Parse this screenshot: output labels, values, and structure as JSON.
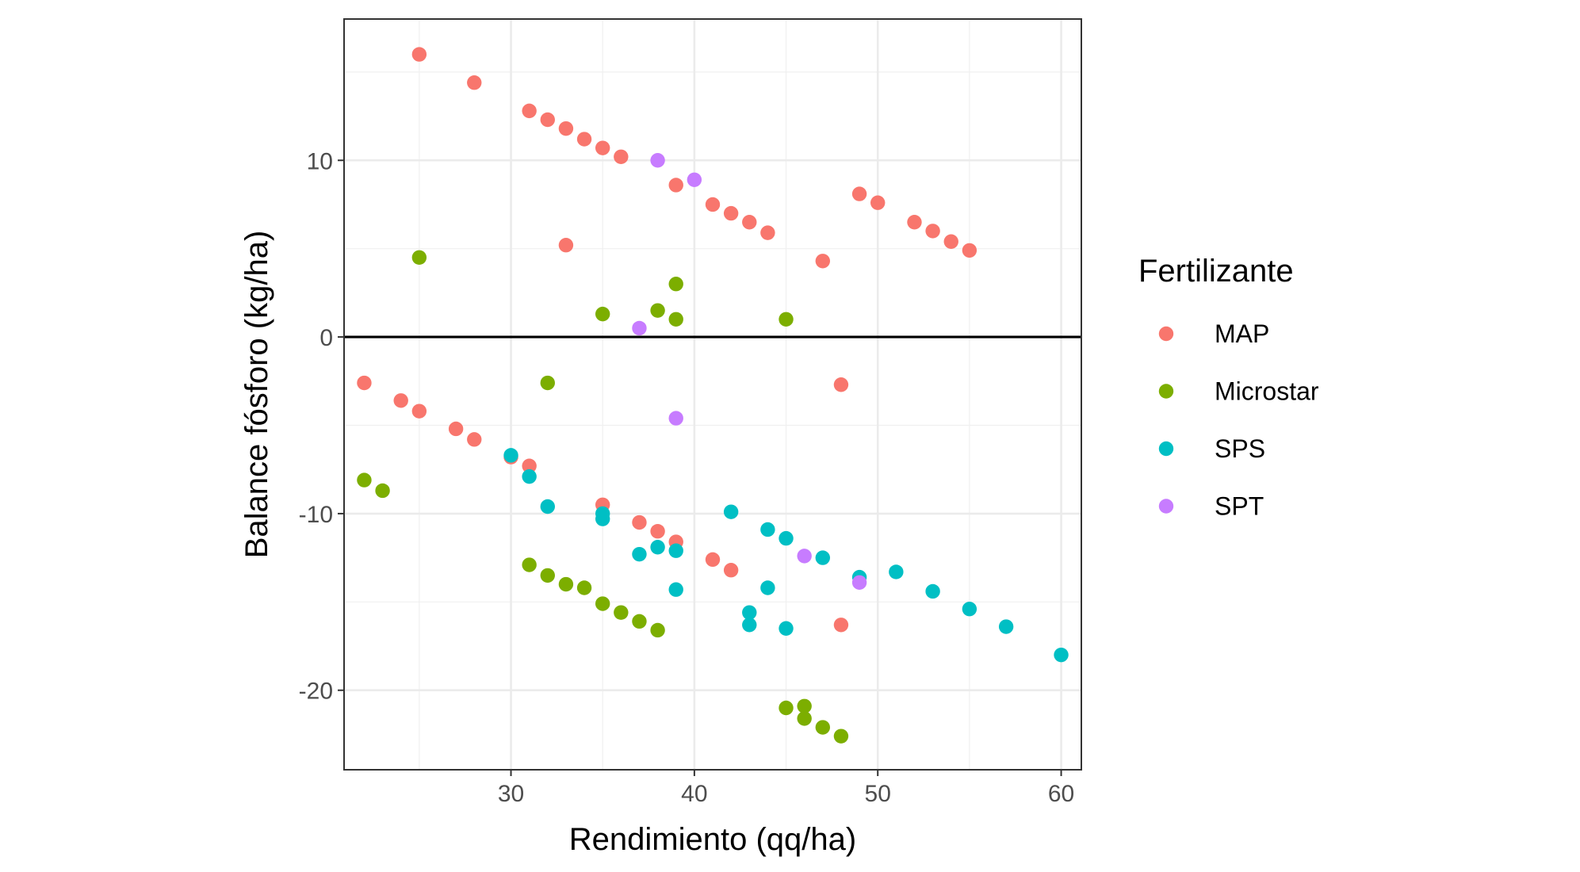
{
  "chart_data": {
    "type": "scatter",
    "xlabel": "Rendimiento (qq/ha)",
    "ylabel": "Balance fósforo (kg/ha)",
    "xlim": [
      20.9,
      61.1
    ],
    "ylim": [
      -24.5,
      18.0
    ],
    "x_ticks": [
      30,
      40,
      50,
      60
    ],
    "y_ticks": [
      -20,
      -10,
      0,
      10
    ],
    "reference_line_y": 0,
    "grid": true,
    "legend": {
      "title": "Fertilizante",
      "position": "right"
    },
    "series": [
      {
        "name": "MAP",
        "color": "#F8766D",
        "points": [
          [
            25,
            16.0
          ],
          [
            28,
            14.4
          ],
          [
            31,
            12.8
          ],
          [
            32,
            12.3
          ],
          [
            33,
            11.8
          ],
          [
            34,
            11.2
          ],
          [
            35,
            10.7
          ],
          [
            36,
            10.2
          ],
          [
            39,
            8.6
          ],
          [
            41,
            7.5
          ],
          [
            42,
            7.0
          ],
          [
            43,
            6.5
          ],
          [
            44,
            5.9
          ],
          [
            47,
            4.3
          ],
          [
            49,
            8.1
          ],
          [
            50,
            7.6
          ],
          [
            52,
            6.5
          ],
          [
            53,
            6.0
          ],
          [
            54,
            5.4
          ],
          [
            55,
            4.9
          ],
          [
            33,
            5.2
          ],
          [
            22,
            -2.6
          ],
          [
            24,
            -3.6
          ],
          [
            25,
            -4.2
          ],
          [
            27,
            -5.2
          ],
          [
            28,
            -5.8
          ],
          [
            30,
            -6.8
          ],
          [
            31,
            -7.3
          ],
          [
            35,
            -9.5
          ],
          [
            37,
            -10.5
          ],
          [
            38,
            -11.0
          ],
          [
            39,
            -11.6
          ],
          [
            41,
            -12.6
          ],
          [
            42,
            -13.2
          ],
          [
            48,
            -2.7
          ],
          [
            48,
            -16.3
          ]
        ]
      },
      {
        "name": "Microstar",
        "color": "#7CAE00",
        "points": [
          [
            25,
            4.5
          ],
          [
            35,
            1.3
          ],
          [
            38,
            1.5
          ],
          [
            39,
            1.0
          ],
          [
            39,
            3.0
          ],
          [
            45,
            1.0
          ],
          [
            32,
            -2.6
          ],
          [
            22,
            -8.1
          ],
          [
            23,
            -8.7
          ],
          [
            31,
            -12.9
          ],
          [
            32,
            -13.5
          ],
          [
            33,
            -14.0
          ],
          [
            34,
            -14.2
          ],
          [
            35,
            -15.1
          ],
          [
            36,
            -15.6
          ],
          [
            37,
            -16.1
          ],
          [
            38,
            -16.6
          ],
          [
            45,
            -21.0
          ],
          [
            46,
            -20.9
          ],
          [
            46,
            -21.6
          ],
          [
            47,
            -22.1
          ],
          [
            48,
            -22.6
          ]
        ]
      },
      {
        "name": "SPS",
        "color": "#00BFC4",
        "points": [
          [
            30,
            -6.7
          ],
          [
            31,
            -7.9
          ],
          [
            32,
            -9.6
          ],
          [
            35,
            -10.0
          ],
          [
            35,
            -10.3
          ],
          [
            37,
            -12.3
          ],
          [
            38,
            -11.9
          ],
          [
            39,
            -12.1
          ],
          [
            39,
            -14.3
          ],
          [
            42,
            -9.9
          ],
          [
            43,
            -15.6
          ],
          [
            43,
            -16.3
          ],
          [
            44,
            -10.9
          ],
          [
            44,
            -14.2
          ],
          [
            45,
            -11.4
          ],
          [
            45,
            -16.5
          ],
          [
            47,
            -12.5
          ],
          [
            49,
            -13.6
          ],
          [
            51,
            -13.3
          ],
          [
            53,
            -14.4
          ],
          [
            55,
            -15.4
          ],
          [
            57,
            -16.4
          ],
          [
            60,
            -18.0
          ]
        ]
      },
      {
        "name": "SPT",
        "color": "#C77CFF",
        "points": [
          [
            38,
            10.0
          ],
          [
            40,
            8.9
          ],
          [
            37,
            0.5
          ],
          [
            39,
            -4.6
          ],
          [
            46,
            -12.4
          ],
          [
            49,
            -13.9
          ]
        ]
      }
    ]
  }
}
